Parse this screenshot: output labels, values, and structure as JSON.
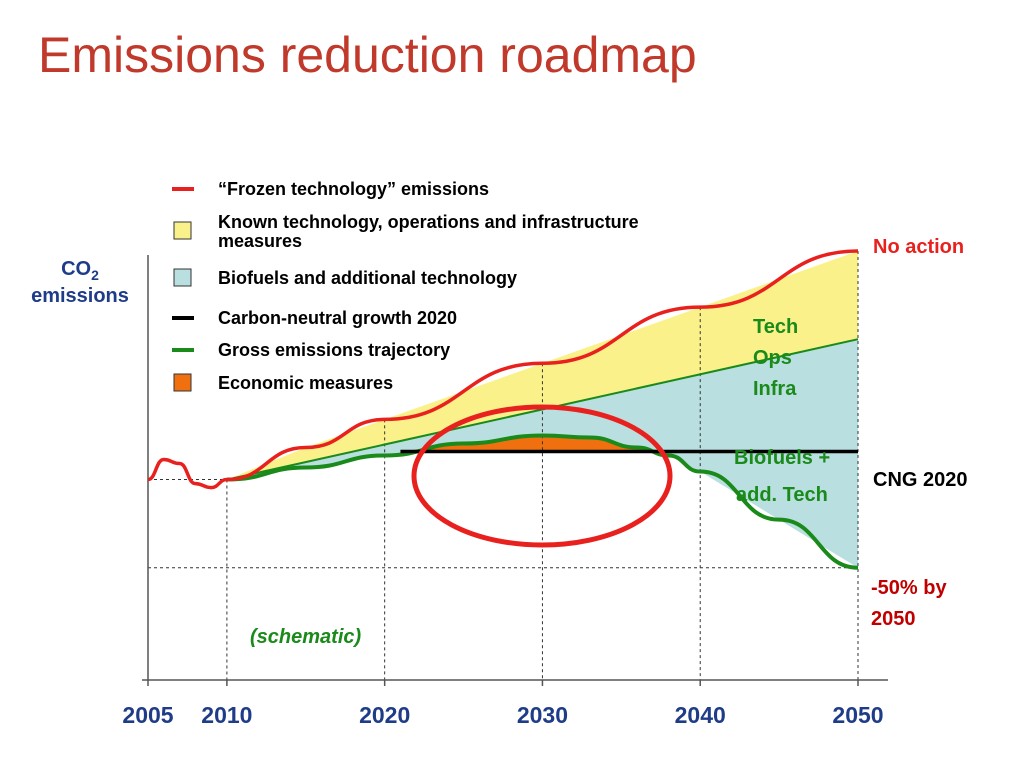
{
  "title": "Emissions reduction roadmap",
  "colors": {
    "title": "#c0392b",
    "frozen": "#e8211e",
    "known_fill": "#fbf18a",
    "biofuel_fill": "#b9dfe0",
    "cng": "#000000",
    "gross": "#1a8a1a",
    "economic": "#f07010",
    "highlight_ellipse": "#e8211e",
    "axis_text": "#1f3c88"
  },
  "legend": [
    {
      "key": "frozen",
      "kind": "line",
      "label": "“Frozen technology” emissions"
    },
    {
      "key": "known",
      "kind": "box",
      "label": "Known technology, operations and infrastructure measures"
    },
    {
      "key": "biofuel",
      "kind": "box",
      "label": "Biofuels and additional technology"
    },
    {
      "key": "cng",
      "kind": "line",
      "label": "Carbon-neutral growth 2020"
    },
    {
      "key": "gross",
      "kind": "line",
      "label": "Gross emissions trajectory"
    },
    {
      "key": "economic",
      "kind": "box",
      "label": "Economic measures"
    }
  ],
  "annotations": {
    "no_action": "No action",
    "tech_ops_infra": [
      "Tech",
      "Ops",
      "Infra"
    ],
    "biofuels_line1": "Biofuels +",
    "biofuels_line2": "add. Tech",
    "cng": "CNG 2020",
    "minus50_line1": "-50% by",
    "minus50_line2": "2050",
    "schematic": "(schematic)"
  },
  "chart_data": {
    "type": "area",
    "title": "Emissions reduction roadmap",
    "xlabel": "",
    "ylabel": "CO2 emissions",
    "xlim": [
      2005,
      2050
    ],
    "ylim": [
      0,
      100
    ],
    "x_ticks": [
      2005,
      2010,
      2020,
      2030,
      2040,
      2050
    ],
    "grid": "dotted vertical at 2010, 2020, 2030, 2040, 2050; dotted horizontal at 2010 level and 2050 target",
    "legend_position": "top",
    "reference_levels": {
      "level_2010": 44,
      "target_2050": 22
    },
    "series": [
      {
        "name": "“Frozen technology” emissions",
        "x": [
          2005,
          2006,
          2007,
          2008,
          2009,
          2010,
          2015,
          2020,
          2030,
          2040,
          2050
        ],
        "y": [
          44,
          49,
          48,
          43,
          42,
          44,
          52,
          59,
          73,
          87,
          101
        ]
      },
      {
        "name": "Known technology, operations and infrastructure measures",
        "x": [
          2010,
          2050
        ],
        "y": [
          44,
          79
        ]
      },
      {
        "name": "Carbon-neutral growth 2020",
        "x": [
          2021,
          2050
        ],
        "y": [
          51,
          51
        ]
      },
      {
        "name": "Gross emissions trajectory",
        "x": [
          2010,
          2015,
          2020,
          2025,
          2030,
          2033,
          2036,
          2038,
          2040,
          2045,
          2050
        ],
        "y": [
          44,
          47,
          50,
          53,
          55,
          54.5,
          52,
          50,
          46,
          34,
          22
        ]
      },
      {
        "name": "Economic measures",
        "x": [
          2021,
          2025,
          2030,
          2033,
          2036,
          2038
        ],
        "y": [
          51,
          53,
          55,
          54.5,
          52,
          51
        ]
      }
    ]
  }
}
